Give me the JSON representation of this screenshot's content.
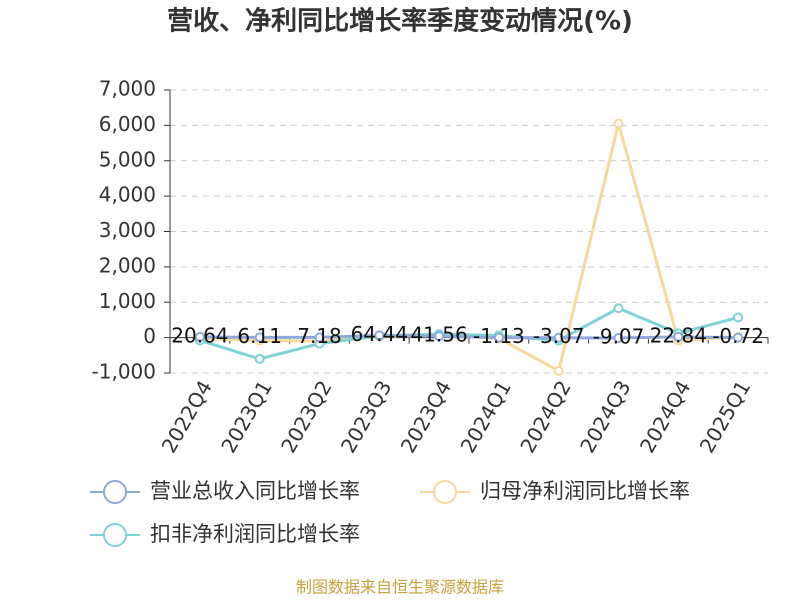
{
  "chart_data": {
    "type": "line",
    "title": "营收、净利同比增长率季度变动情况(%)",
    "categories": [
      "2022Q4",
      "2023Q1",
      "2023Q2",
      "2023Q3",
      "2023Q4",
      "2024Q1",
      "2024Q2",
      "2024Q3",
      "2024Q4",
      "2025Q1"
    ],
    "series": [
      {
        "name": "营业总收入同比增长率",
        "color": "#8eaadb",
        "values": [
          20.64,
          6.11,
          7.18,
          64.44,
          41.56,
          -1.13,
          -3.07,
          -9.07,
          22.84,
          -0.72
        ]
      },
      {
        "name": "归母净利润同比增长率",
        "color": "#f8d89c",
        "values": [
          -30,
          -80,
          -100,
          30,
          60,
          -20,
          -940,
          6050,
          -80,
          20
        ]
      },
      {
        "name": "扣非净利润同比增长率",
        "color": "#7fd3d6",
        "values": [
          -80,
          -600,
          -170,
          50,
          100,
          60,
          -80,
          830,
          120,
          570
        ]
      }
    ],
    "ylim": [
      -1000,
      7000
    ],
    "yticks": [
      {
        "value": -1000,
        "label": "-1,000"
      },
      0,
      {
        "value": 1000,
        "label": "1,000"
      },
      {
        "value": 2000,
        "label": "2,000"
      },
      {
        "value": 3000,
        "label": "3,000"
      },
      {
        "value": 4000,
        "label": "4,000"
      },
      {
        "value": 5000,
        "label": "5,000"
      },
      {
        "value": 6000,
        "label": "6,000"
      },
      {
        "value": 7000,
        "label": "7,000"
      }
    ],
    "grid": true,
    "data_labels_series": 0,
    "source": "制图数据来自恒生聚源数据库"
  }
}
